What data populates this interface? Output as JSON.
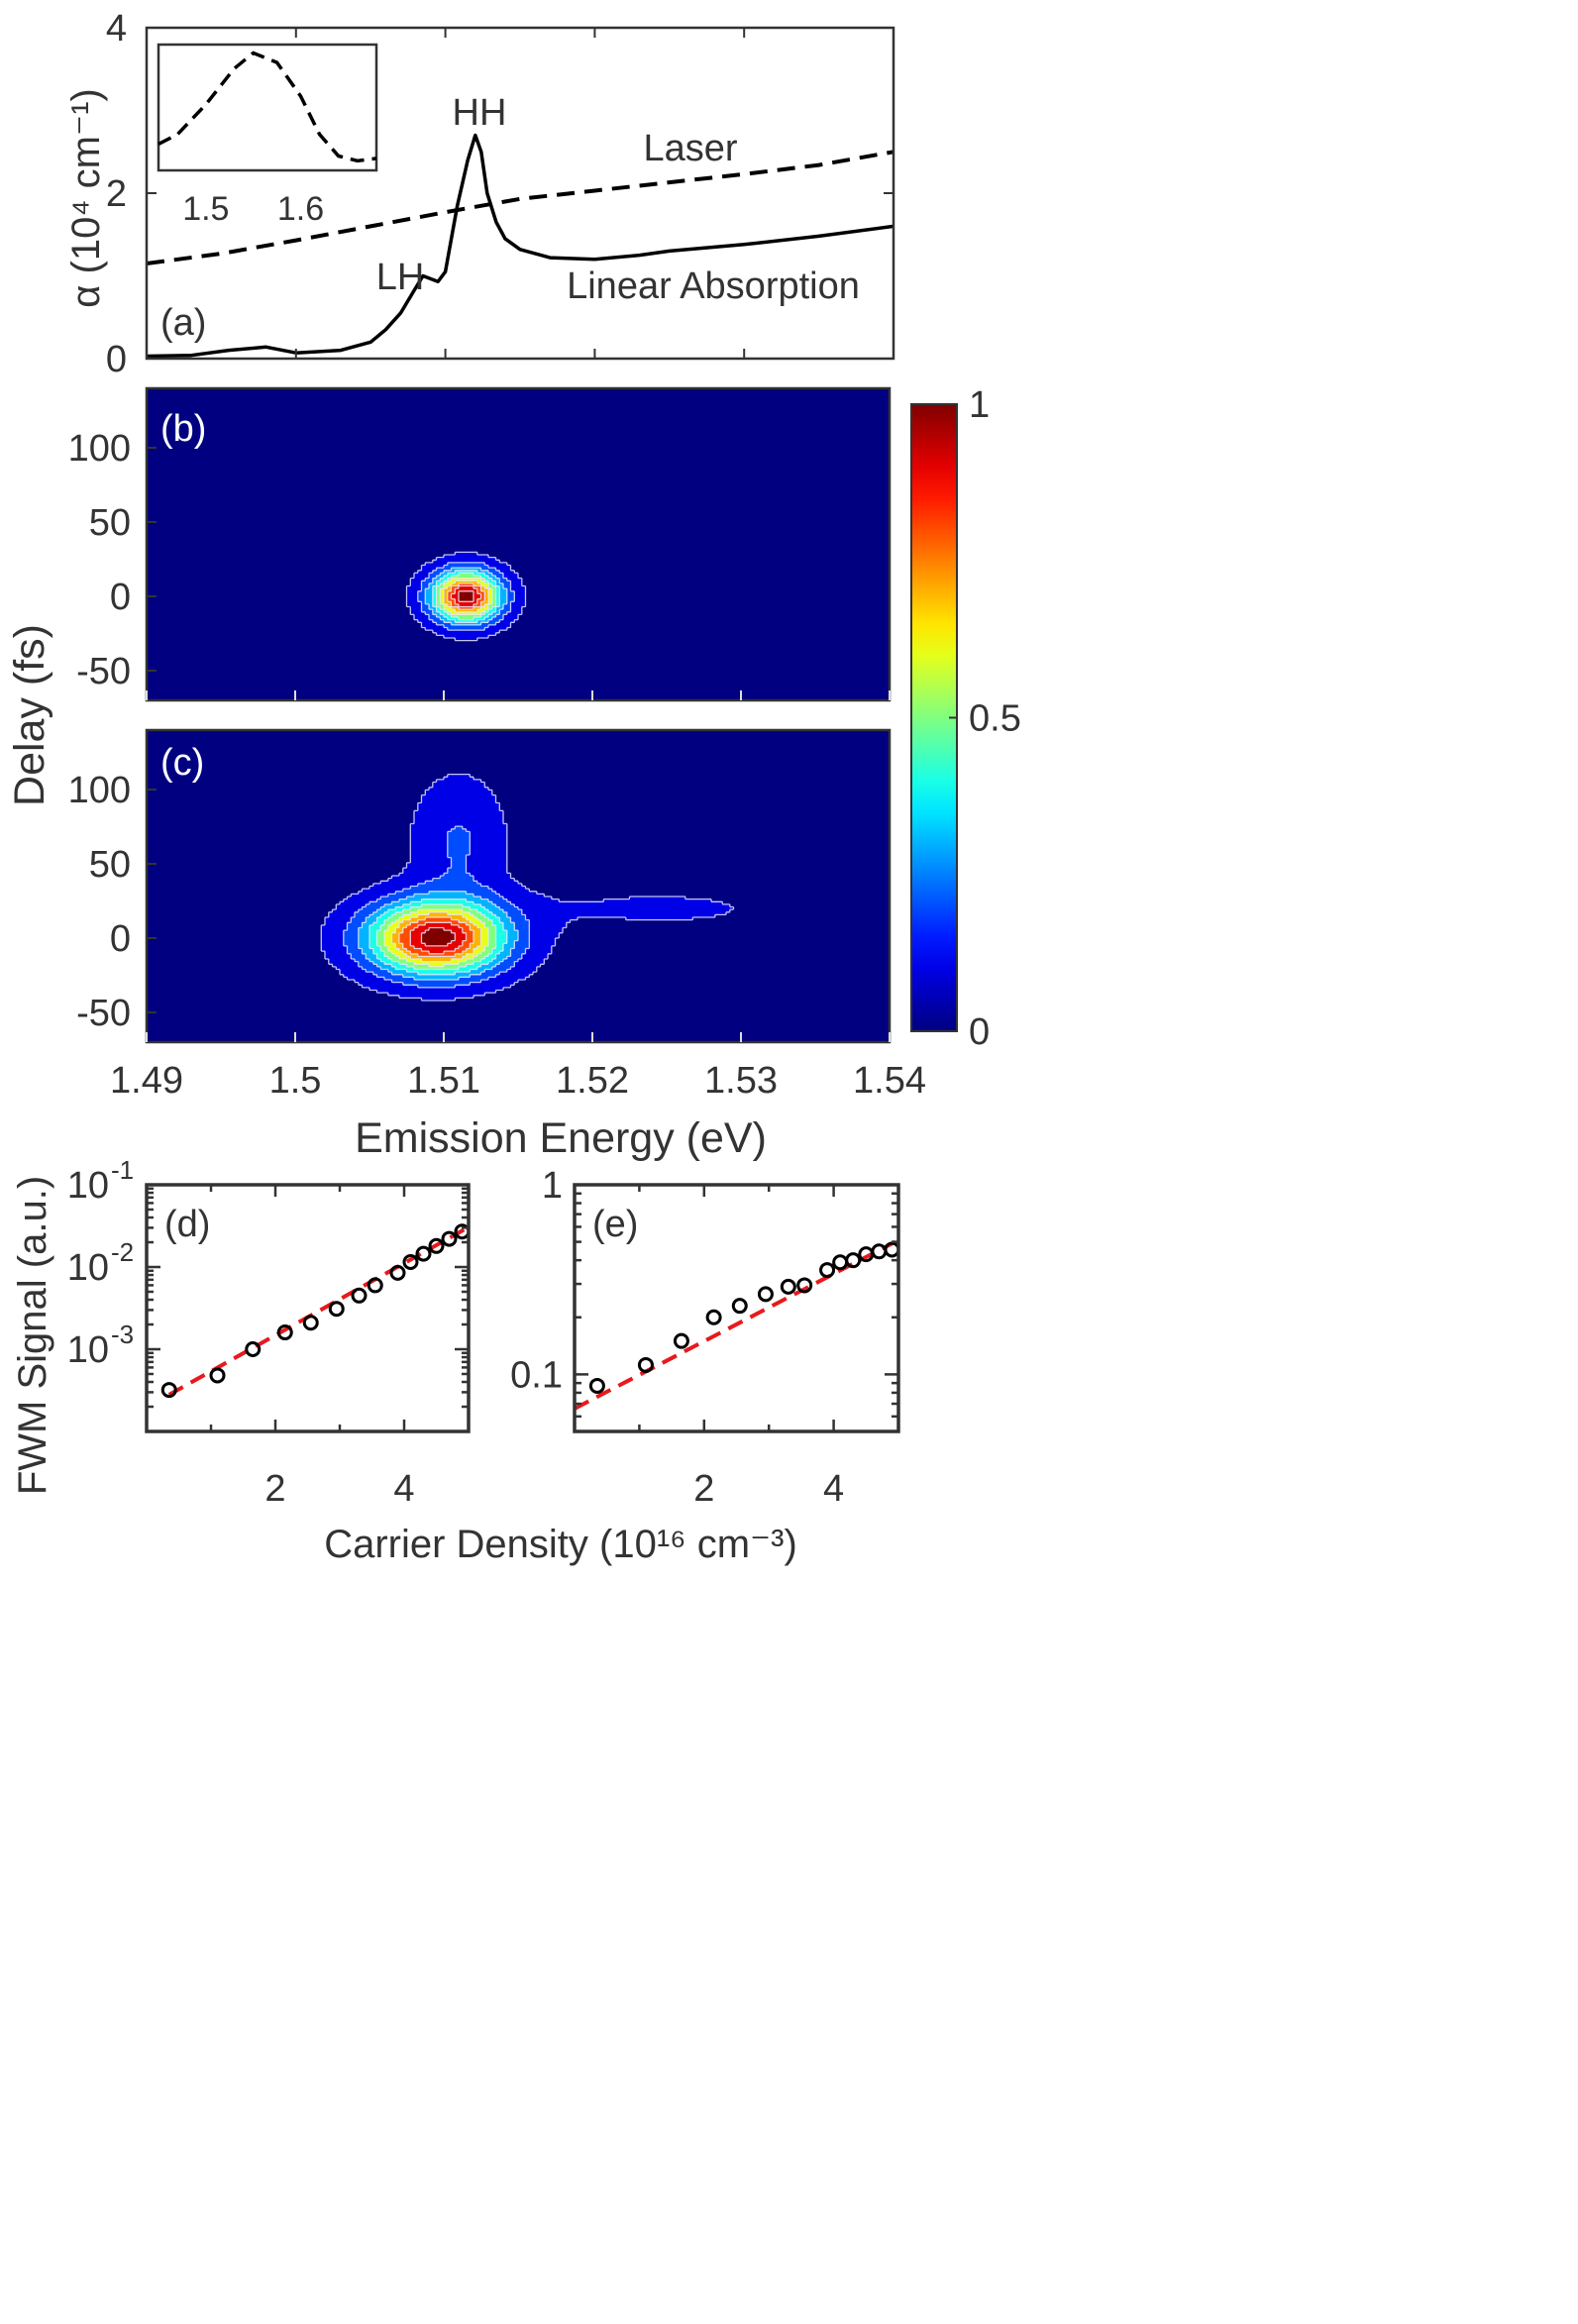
{
  "chart_data": [
    {
      "id": "a",
      "type": "line",
      "panel_label": "(a)",
      "ylabel": "α (10⁴ cm⁻¹)",
      "xlim": [
        1.49,
        1.54
      ],
      "ylim": [
        0,
        4
      ],
      "xticks": [
        1.49,
        1.5,
        1.51,
        1.52,
        1.53,
        1.54
      ],
      "yticks": [
        0,
        2,
        4
      ],
      "ytick_labels": [
        "0",
        "2",
        "4"
      ],
      "annotations": [
        "HH",
        "LH",
        "Laser",
        "Linear Absorption"
      ],
      "series": [
        {
          "name": "Linear Absorption",
          "style": "solid",
          "color": "#000000",
          "x": [
            1.49,
            1.493,
            1.4955,
            1.498,
            1.5,
            1.503,
            1.505,
            1.506,
            1.507,
            1.508,
            1.5085,
            1.5095,
            1.51,
            1.5103,
            1.5108,
            1.5115,
            1.512,
            1.5124,
            1.5128,
            1.5134,
            1.514,
            1.515,
            1.517,
            1.52,
            1.523,
            1.525,
            1.53,
            1.535,
            1.54
          ],
          "y": [
            0.03,
            0.04,
            0.1,
            0.14,
            0.07,
            0.1,
            0.2,
            0.35,
            0.55,
            0.85,
            1.0,
            0.93,
            1.05,
            1.35,
            1.85,
            2.4,
            2.7,
            2.5,
            2.0,
            1.65,
            1.45,
            1.32,
            1.22,
            1.2,
            1.25,
            1.3,
            1.38,
            1.48,
            1.6
          ]
        },
        {
          "name": "Laser",
          "style": "dashed",
          "color": "#000000",
          "x": [
            1.49,
            1.495,
            1.5,
            1.505,
            1.51,
            1.515,
            1.52,
            1.525,
            1.53,
            1.535,
            1.54
          ],
          "y": [
            1.15,
            1.27,
            1.43,
            1.6,
            1.77,
            1.93,
            2.03,
            2.13,
            2.23,
            2.34,
            2.5
          ]
        }
      ],
      "inset": {
        "xlim": [
          1.45,
          1.68
        ],
        "xticks": [
          1.5,
          1.6
        ],
        "xtick_labels": [
          "1.5",
          "1.6"
        ],
        "series": [
          {
            "name": "Laser spectrum",
            "style": "dashed",
            "x": [
              1.45,
              1.47,
              1.5,
              1.53,
              1.55,
              1.575,
              1.6,
              1.62,
              1.64,
              1.66,
              1.68
            ],
            "y": [
              0.22,
              0.3,
              0.55,
              0.85,
              0.98,
              0.9,
              0.62,
              0.3,
              0.12,
              0.08,
              0.1
            ]
          }
        ]
      }
    },
    {
      "id": "b",
      "type": "heatmap",
      "panel_label": "(b)",
      "xlim": [
        1.49,
        1.54
      ],
      "ylim": [
        -70,
        140
      ],
      "yticks": [
        -50,
        0,
        50,
        100
      ],
      "ytick_labels": [
        "-50",
        "0",
        "50",
        "100"
      ],
      "contour_levels": [
        0.05,
        0.15,
        0.25,
        0.35,
        0.45,
        0.55,
        0.65,
        0.75,
        0.85,
        0.95
      ],
      "peaks": [
        {
          "center_energy_eV": 1.5115,
          "center_delay_fs": 0,
          "amplitude": 1.0,
          "width_energy_eV": 0.0023,
          "width_delay_fs": 17,
          "power": 2
        }
      ]
    },
    {
      "id": "c",
      "type": "heatmap",
      "panel_label": "(c)",
      "xlim": [
        1.49,
        1.54
      ],
      "ylim": [
        -70,
        140
      ],
      "xticks": [
        1.49,
        1.5,
        1.51,
        1.52,
        1.53,
        1.54
      ],
      "xtick_labels": [
        "1.49",
        "1.5",
        "1.51",
        "1.52",
        "1.53",
        "1.54"
      ],
      "xlabel": "Emission Energy (eV)",
      "yticks": [
        -50,
        0,
        50,
        100
      ],
      "ytick_labels": [
        "-50",
        "0",
        "50",
        "100"
      ],
      "contour_levels": [
        0.05,
        0.15,
        0.25,
        0.35,
        0.45,
        0.55,
        0.65,
        0.75,
        0.85,
        0.95
      ],
      "peaks": [
        {
          "center_energy_eV": 1.5095,
          "center_delay_fs": 0,
          "amplitude": 1.0,
          "width_energy_eV": 0.0045,
          "width_delay_fs": 24,
          "power": 2
        },
        {
          "center_energy_eV": 1.511,
          "center_delay_fs": 65,
          "amplitude": 0.16,
          "width_energy_eV": 0.003,
          "width_delay_fs": 42,
          "power": 2
        },
        {
          "center_energy_eV": 1.5245,
          "center_delay_fs": 20,
          "amplitude": 0.06,
          "width_energy_eV": 0.0115,
          "width_delay_fs": 18,
          "power": 2
        }
      ]
    },
    {
      "id": "colorbar",
      "type": "colorbar",
      "range": [
        0,
        1
      ],
      "ticks": [
        0,
        0.5,
        1
      ],
      "tick_labels": [
        "0",
        "0.5",
        "1"
      ],
      "colormap": "jet"
    },
    {
      "id": "d",
      "type": "scatter",
      "panel_label": "(d)",
      "ylabel": "FWM Signal (a.u.)",
      "yscale": "log",
      "xlim": [
        0,
        5
      ],
      "ylim": [
        0.0001,
        0.1
      ],
      "xticks": [
        2,
        4
      ],
      "xtick_labels": [
        "2",
        "4"
      ],
      "yticks": [
        0.001,
        0.01,
        0.1
      ],
      "ytick_labels": [
        [
          "10",
          "-3"
        ],
        [
          "10",
          "-2"
        ],
        [
          "10",
          "-1"
        ]
      ],
      "x": [
        0.35,
        1.1,
        1.65,
        2.15,
        2.55,
        2.95,
        3.3,
        3.55,
        3.9,
        4.1,
        4.3,
        4.5,
        4.7,
        4.9
      ],
      "y": [
        0.00032,
        0.00048,
        0.001,
        0.0016,
        0.0021,
        0.0031,
        0.0045,
        0.006,
        0.0085,
        0.0115,
        0.0145,
        0.018,
        0.022,
        0.027
      ],
      "fit": {
        "style": "dashed",
        "color": "#e8191d",
        "x": [
          0.35,
          4.95
        ],
        "y": [
          0.00028,
          0.029
        ]
      }
    },
    {
      "id": "e",
      "type": "scatter",
      "panel_label": "(e)",
      "yscale": "log",
      "xlim": [
        0,
        5
      ],
      "ylim": [
        0.05,
        1
      ],
      "xticks": [
        2,
        4
      ],
      "xtick_labels": [
        "2",
        "4"
      ],
      "yticks": [
        0.1,
        1
      ],
      "ytick_labels": [
        "0.1",
        "1"
      ],
      "xlabel": "Carrier Density (10¹⁶ cm⁻³)",
      "x": [
        0.35,
        1.1,
        1.65,
        2.15,
        2.55,
        2.95,
        3.3,
        3.55,
        3.9,
        4.1,
        4.3,
        4.5,
        4.7,
        4.9
      ],
      "y": [
        0.087,
        0.112,
        0.15,
        0.2,
        0.23,
        0.265,
        0.29,
        0.295,
        0.355,
        0.39,
        0.4,
        0.43,
        0.445,
        0.455
      ],
      "fit": {
        "style": "dashed",
        "color": "#e8191d",
        "x": [
          0.0,
          4.95
        ],
        "y": [
          0.066,
          0.5
        ]
      }
    }
  ],
  "shared_labels": {
    "delay_ylabel": "Delay (fs)",
    "fwm_ylabel": "FWM Signal (a.u.)",
    "emission_xlabel": "Emission Energy (eV)",
    "density_xlabel": "Carrier Density (10¹⁶ cm⁻³)",
    "alpha_label": "α (10⁴ cm⁻¹)"
  }
}
